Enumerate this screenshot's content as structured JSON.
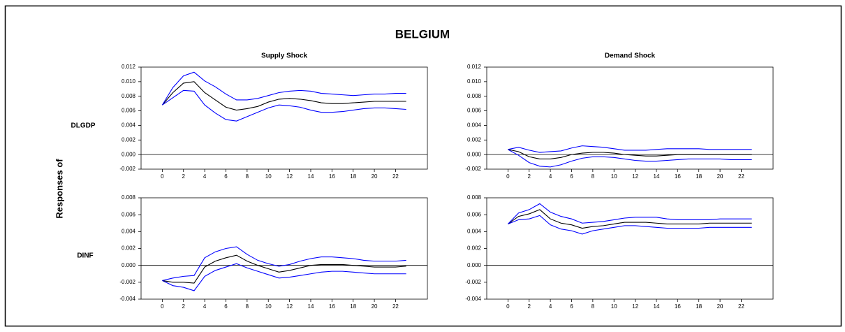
{
  "title": "BELGIUM",
  "ylabel": "Responses of",
  "row_labels": [
    "DLGDP",
    "DINF"
  ],
  "chart_data": [
    {
      "type": "line",
      "title": "Supply Shock",
      "x": [
        0,
        1,
        2,
        3,
        4,
        5,
        6,
        7,
        8,
        9,
        10,
        11,
        12,
        13,
        14,
        15,
        16,
        17,
        18,
        19,
        20,
        21,
        22,
        23
      ],
      "xlim": [
        -2,
        25
      ],
      "xticks": [
        0,
        2,
        4,
        6,
        8,
        10,
        12,
        14,
        16,
        18,
        20,
        22
      ],
      "ylim": [
        -0.002,
        0.012
      ],
      "yticks": [
        -0.002,
        {
          "value": 0,
          "label": "0.000"
        },
        0.002,
        0.004,
        0.006,
        0.008,
        {
          "value": 0.01,
          "label": "0.010"
        },
        0.012
      ],
      "zero_line": true,
      "series": [
        {
          "color": "#0000ff",
          "values": [
            0.0068,
            0.0078,
            0.0088,
            0.0087,
            0.0068,
            0.0057,
            0.0048,
            0.0046,
            0.0052,
            0.0058,
            0.0064,
            0.0068,
            0.0067,
            0.0065,
            0.0061,
            0.0058,
            0.0058,
            0.0059,
            0.0061,
            0.0063,
            0.0064,
            0.0064,
            0.0063,
            0.0062
          ]
        },
        {
          "color": "#000000",
          "values": [
            0.0068,
            0.0085,
            0.0098,
            0.01,
            0.0085,
            0.0075,
            0.0065,
            0.0061,
            0.0063,
            0.0066,
            0.0072,
            0.0076,
            0.0077,
            0.0076,
            0.0074,
            0.0071,
            0.007,
            0.007,
            0.0071,
            0.0072,
            0.0073,
            0.0073,
            0.0073,
            0.0073
          ]
        },
        {
          "color": "#0000ff",
          "values": [
            0.0068,
            0.0092,
            0.0108,
            0.0113,
            0.0101,
            0.0093,
            0.0083,
            0.0075,
            0.0075,
            0.0077,
            0.0081,
            0.0085,
            0.0087,
            0.0088,
            0.0087,
            0.0084,
            0.0083,
            0.0082,
            0.0081,
            0.0082,
            0.0083,
            0.0083,
            0.0084,
            0.0084
          ]
        }
      ]
    },
    {
      "type": "line",
      "title": "Demand Shock",
      "x": [
        0,
        1,
        2,
        3,
        4,
        5,
        6,
        7,
        8,
        9,
        10,
        11,
        12,
        13,
        14,
        15,
        16,
        17,
        18,
        19,
        20,
        21,
        22,
        23
      ],
      "xlim": [
        -2,
        25
      ],
      "xticks": [
        0,
        2,
        4,
        6,
        8,
        10,
        12,
        14,
        16,
        18,
        20,
        22
      ],
      "ylim": [
        -0.002,
        0.012
      ],
      "yticks": [
        -0.002,
        {
          "value": 0,
          "label": "0.000"
        },
        0.002,
        0.004,
        0.006,
        0.008,
        {
          "value": 0.01,
          "label": "0.010"
        },
        0.012
      ],
      "zero_line": true,
      "series": [
        {
          "color": "#0000ff",
          "values": [
            0.0007,
            -0.0001,
            -0.0011,
            -0.0016,
            -0.0017,
            -0.0014,
            -0.0009,
            -0.0005,
            -0.0003,
            -0.0003,
            -0.0004,
            -0.0006,
            -0.0008,
            -0.0009,
            -0.0009,
            -0.0008,
            -0.0007,
            -0.0006,
            -0.0006,
            -0.0006,
            -0.0006,
            -0.0007,
            -0.0007,
            -0.0007
          ]
        },
        {
          "color": "#000000",
          "values": [
            0.0007,
            0.0004,
            -0.0003,
            -0.0006,
            -0.0006,
            -0.0004,
            0.0,
            0.0002,
            0.0003,
            0.0003,
            0.0002,
            0.0,
            -0.0001,
            -0.0002,
            -0.0002,
            -0.0001,
            0.0,
            0.0,
            0.0,
            0.0,
            0.0,
            0.0,
            0.0,
            0.0
          ]
        },
        {
          "color": "#0000ff",
          "values": [
            0.0007,
            0.001,
            0.0006,
            0.0003,
            0.0004,
            0.0005,
            0.0009,
            0.0012,
            0.0011,
            0.001,
            0.0008,
            0.0006,
            0.0006,
            0.0006,
            0.0007,
            0.0008,
            0.0008,
            0.0008,
            0.0008,
            0.0007,
            0.0007,
            0.0007,
            0.0007,
            0.0007
          ]
        }
      ]
    },
    {
      "type": "line",
      "x": [
        0,
        1,
        2,
        3,
        4,
        5,
        6,
        7,
        8,
        9,
        10,
        11,
        12,
        13,
        14,
        15,
        16,
        17,
        18,
        19,
        20,
        21,
        22,
        23
      ],
      "xlim": [
        -2,
        25
      ],
      "xticks": [
        0,
        2,
        4,
        6,
        8,
        10,
        12,
        14,
        16,
        18,
        20,
        22
      ],
      "ylim": [
        -0.004,
        0.008
      ],
      "yticks": [
        -0.004,
        -0.002,
        {
          "value": 0,
          "label": "0.000"
        },
        0.002,
        0.004,
        0.006,
        0.008
      ],
      "zero_line": true,
      "series": [
        {
          "color": "#0000ff",
          "values": [
            -0.0018,
            -0.0024,
            -0.0026,
            -0.003,
            -0.0013,
            -0.0006,
            -0.0002,
            0.0002,
            -0.0003,
            -0.0007,
            -0.0011,
            -0.0015,
            -0.0014,
            -0.0012,
            -0.001,
            -0.0008,
            -0.0007,
            -0.0007,
            -0.0008,
            -0.0009,
            -0.001,
            -0.001,
            -0.001,
            -0.001
          ]
        },
        {
          "color": "#000000",
          "values": [
            -0.0018,
            -0.002,
            -0.002,
            -0.0021,
            -0.0002,
            0.0005,
            0.0009,
            0.0012,
            0.0005,
            0.0,
            -0.0004,
            -0.0008,
            -0.0006,
            -0.0003,
            0.0,
            0.0001,
            0.0001,
            0.0001,
            0.0,
            -0.0001,
            -0.0002,
            -0.0002,
            -0.0002,
            -0.0001
          ]
        },
        {
          "color": "#0000ff",
          "values": [
            -0.0018,
            -0.0015,
            -0.0013,
            -0.0012,
            0.0009,
            0.0016,
            0.002,
            0.0022,
            0.0013,
            0.0006,
            0.0002,
            -0.0001,
            0.0001,
            0.0005,
            0.0008,
            0.001,
            0.001,
            0.0009,
            0.0008,
            0.0006,
            0.0005,
            0.0005,
            0.0005,
            0.0006
          ]
        }
      ]
    },
    {
      "type": "line",
      "x": [
        0,
        1,
        2,
        3,
        4,
        5,
        6,
        7,
        8,
        9,
        10,
        11,
        12,
        13,
        14,
        15,
        16,
        17,
        18,
        19,
        20,
        21,
        22,
        23
      ],
      "xlim": [
        -2,
        25
      ],
      "xticks": [
        0,
        2,
        4,
        6,
        8,
        10,
        12,
        14,
        16,
        18,
        20,
        22
      ],
      "ylim": [
        -0.004,
        0.008
      ],
      "yticks": [
        -0.004,
        -0.002,
        {
          "value": 0,
          "label": "0.000"
        },
        0.002,
        0.004,
        0.006,
        0.008
      ],
      "zero_line": true,
      "series": [
        {
          "color": "#0000ff",
          "values": [
            0.0049,
            0.0054,
            0.0055,
            0.0059,
            0.0048,
            0.0043,
            0.0041,
            0.0037,
            0.0041,
            0.0043,
            0.0045,
            0.0047,
            0.0047,
            0.0046,
            0.0045,
            0.0044,
            0.0044,
            0.0044,
            0.0044,
            0.0045,
            0.0045,
            0.0045,
            0.0045,
            0.0045
          ]
        },
        {
          "color": "#000000",
          "values": [
            0.0049,
            0.0058,
            0.0061,
            0.0066,
            0.0055,
            0.005,
            0.0048,
            0.0044,
            0.0046,
            0.0047,
            0.0049,
            0.0051,
            0.0051,
            0.0051,
            0.005,
            0.0049,
            0.0049,
            0.0049,
            0.0049,
            0.005,
            0.005,
            0.005,
            0.005,
            0.005
          ]
        },
        {
          "color": "#0000ff",
          "values": [
            0.0049,
            0.0062,
            0.0066,
            0.0073,
            0.0063,
            0.0058,
            0.0055,
            0.005,
            0.0051,
            0.0052,
            0.0054,
            0.0056,
            0.0057,
            0.0057,
            0.0057,
            0.0055,
            0.0054,
            0.0054,
            0.0054,
            0.0054,
            0.0055,
            0.0055,
            0.0055,
            0.0055
          ]
        }
      ]
    }
  ]
}
